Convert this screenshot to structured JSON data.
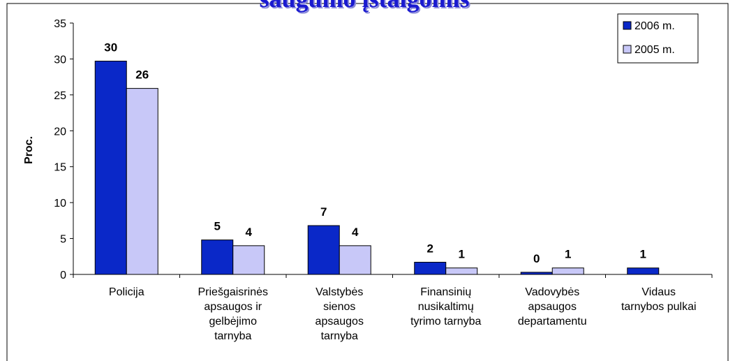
{
  "chart_data": {
    "type": "bar",
    "title": "saugumo įstaigomis",
    "y_label": "Proc.",
    "categories": [
      [
        "Policija"
      ],
      [
        "Priešgaisrinės",
        "apsaugos ir",
        "gelbėjimo",
        "tarnyba"
      ],
      [
        "Valstybės",
        "sienos",
        "apsaugos",
        "tarnyba"
      ],
      [
        "Finansinių",
        "nusikaltimų",
        "tyrimo tarnyba"
      ],
      [
        "Vadovybės",
        "apsaugos",
        "departamentu"
      ],
      [
        "Vidaus",
        "tarnybos pulkai"
      ]
    ],
    "series": [
      {
        "name": "2006 m.",
        "color": "#0a28c8",
        "values": [
          29.7,
          4.8,
          6.8,
          1.7,
          0.3,
          0.9
        ],
        "value_labels": [
          "30",
          "5",
          "7",
          "2",
          "0",
          "1"
        ]
      },
      {
        "name": "2005 m.",
        "color": "#c8c8f8",
        "values": [
          25.9,
          4,
          4,
          0.9,
          0.9,
          null
        ],
        "value_labels": [
          "26",
          "4",
          "4",
          "1",
          "1",
          null
        ]
      }
    ],
    "ylim": [
      0,
      35
    ],
    "yticks": [
      0,
      5,
      10,
      15,
      20,
      25,
      30,
      35
    ],
    "grid": false,
    "legend": "top-right"
  }
}
